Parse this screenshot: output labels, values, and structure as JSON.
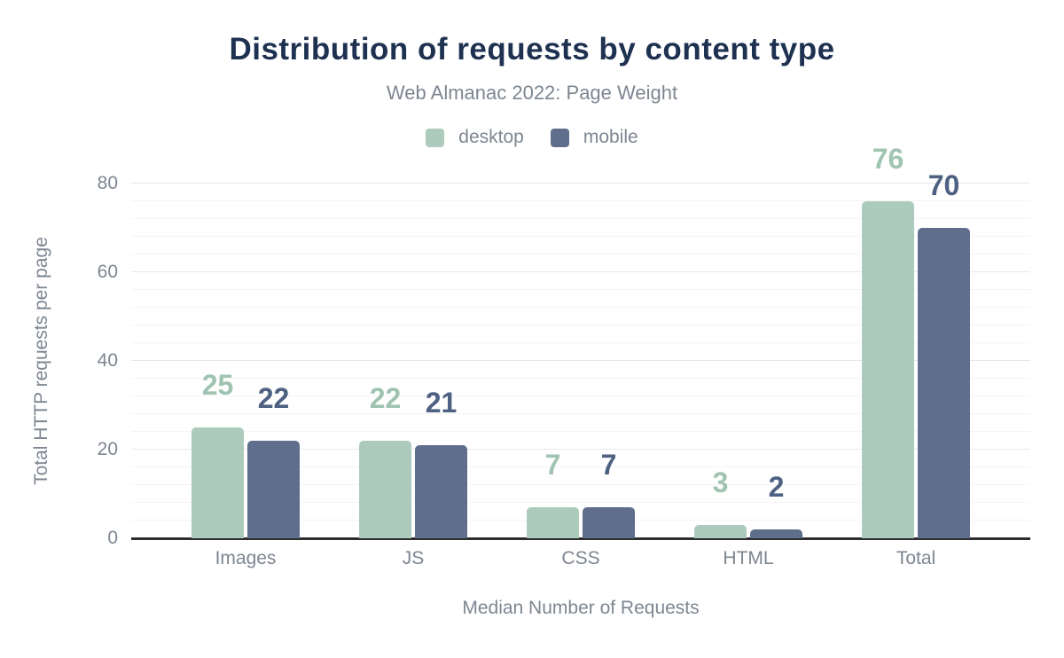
{
  "chart_data": {
    "type": "bar",
    "title": "Distribution of requests by content type",
    "subtitle": "Web Almanac 2022: Page Weight",
    "xlabel": "Median Number of Requests",
    "ylabel": "Total HTTP requests per page",
    "categories": [
      "Images",
      "JS",
      "CSS",
      "HTML",
      "Total"
    ],
    "series": [
      {
        "name": "desktop",
        "color": "#accbbc",
        "label_color": "#a0c4b2",
        "values": [
          25,
          22,
          7,
          3,
          76
        ]
      },
      {
        "name": "mobile",
        "color": "#5e6e8c",
        "label_color": "#4e6182",
        "values": [
          22,
          21,
          7,
          2,
          70
        ]
      }
    ],
    "ylim": [
      0,
      80
    ],
    "yticks": [
      0,
      20,
      40,
      60,
      80
    ],
    "minor_grid_step": 4,
    "grid": true,
    "legend_position": "top",
    "colors": {
      "title": "#1e3151",
      "muted_text": "#7d8691",
      "axis_line": "#2d2d2d"
    }
  }
}
